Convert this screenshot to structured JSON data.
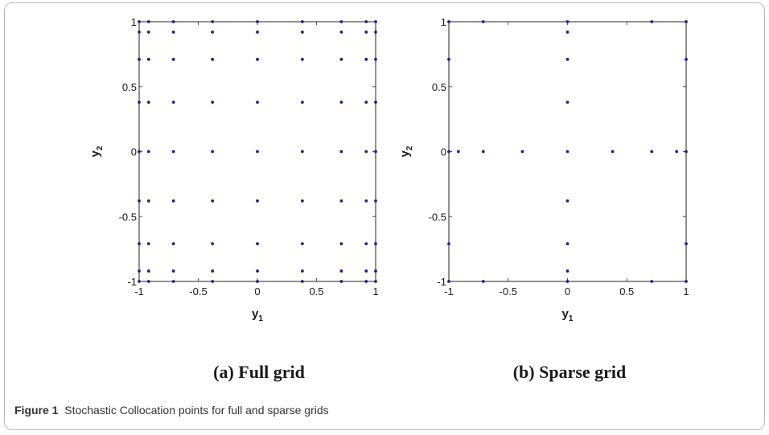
{
  "figure": {
    "label": "Figure 1",
    "caption": "Stochastic Collocation points for full and sparse grids"
  },
  "chart_data": [
    {
      "type": "scatter",
      "subtitle": "(a) Full grid",
      "xlabel": "y",
      "xlabel_sub": "1",
      "ylabel": "y",
      "ylabel_sub": "2",
      "xlim": [
        -1,
        1
      ],
      "ylim": [
        -1,
        1
      ],
      "xticks": [
        -1,
        -0.5,
        0,
        0.5,
        1
      ],
      "yticks": [
        -1,
        -0.5,
        0,
        0.5,
        1
      ],
      "xtick_labels": [
        "-1",
        "-0.5",
        "0",
        "0.5",
        "1"
      ],
      "ytick_labels": [
        "-1",
        "-0.5",
        "0",
        "0.5",
        "1"
      ],
      "grid": false,
      "point_color": "#1f1f8f",
      "grid_nodes": [
        -1,
        -0.92,
        -0.71,
        -0.38,
        0,
        0.38,
        0.71,
        0.92,
        1
      ]
    },
    {
      "type": "scatter",
      "subtitle": "(b) Sparse grid",
      "xlabel": "y",
      "xlabel_sub": "1",
      "ylabel": "y",
      "ylabel_sub": "2",
      "xlim": [
        -1,
        1
      ],
      "ylim": [
        -1,
        1
      ],
      "xticks": [
        -1,
        -0.5,
        0,
        0.5,
        1
      ],
      "yticks": [
        -1,
        -0.5,
        0,
        0.5,
        1
      ],
      "xtick_labels": [
        "-1",
        "-0.5",
        "0",
        "0.5",
        "1"
      ],
      "ytick_labels": [
        "-1",
        "-0.5",
        "0",
        "0.5",
        "1"
      ],
      "grid": false,
      "point_color": "#1f1f8f",
      "points": [
        [
          -1,
          -1
        ],
        [
          -0.71,
          -1
        ],
        [
          0,
          -1
        ],
        [
          0.71,
          -1
        ],
        [
          1,
          -1
        ],
        [
          -1,
          1
        ],
        [
          -0.71,
          1
        ],
        [
          0,
          1
        ],
        [
          0.71,
          1
        ],
        [
          1,
          1
        ],
        [
          -1,
          -0.71
        ],
        [
          -1,
          0.71
        ],
        [
          1,
          -0.71
        ],
        [
          1,
          0.71
        ],
        [
          -1,
          0
        ],
        [
          -0.92,
          0
        ],
        [
          -0.71,
          0
        ],
        [
          -0.38,
          0
        ],
        [
          0,
          0
        ],
        [
          0.38,
          0
        ],
        [
          0.71,
          0
        ],
        [
          0.92,
          0
        ],
        [
          1,
          0
        ],
        [
          0,
          -0.92
        ],
        [
          0,
          -0.71
        ],
        [
          0,
          -0.38
        ],
        [
          0,
          0.38
        ],
        [
          0,
          0.71
        ],
        [
          0,
          0.92
        ]
      ]
    }
  ]
}
